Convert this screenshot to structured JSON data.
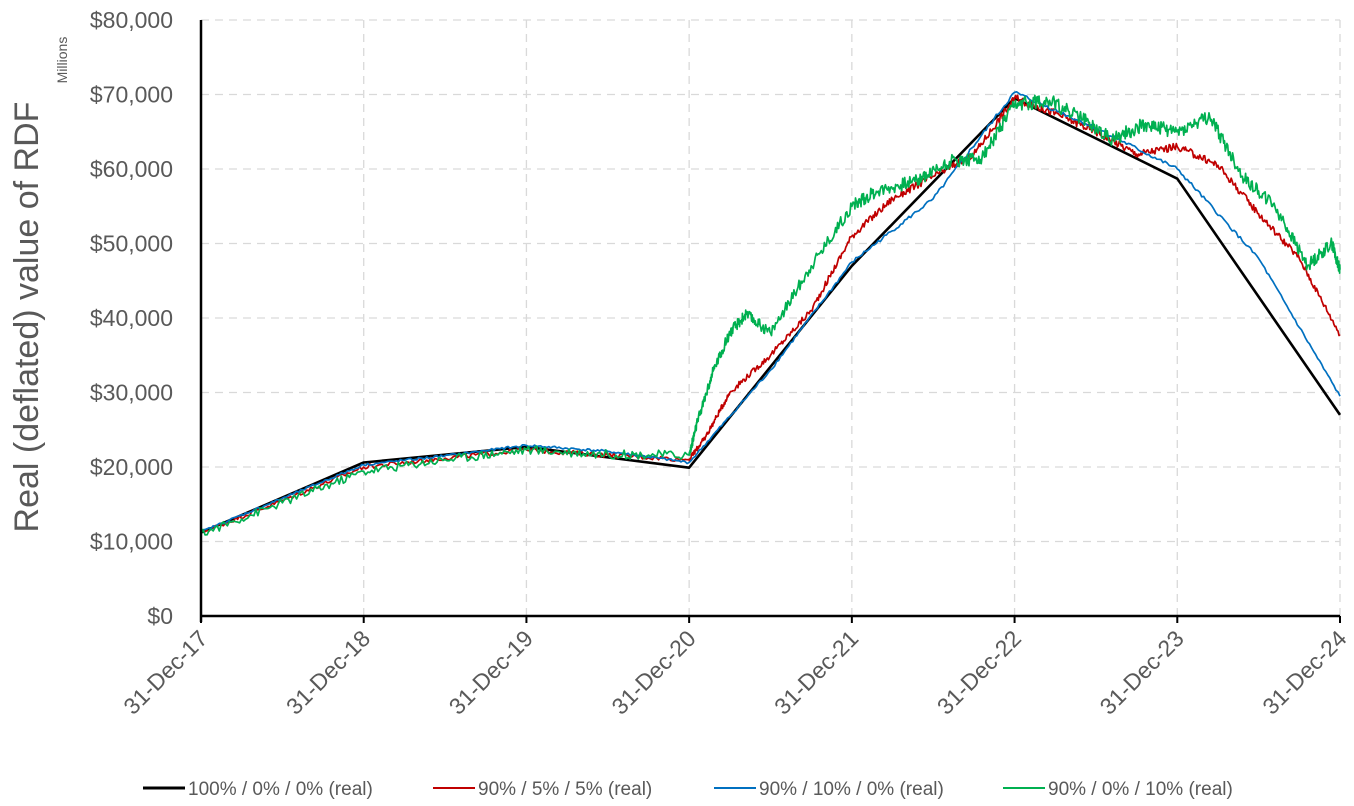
{
  "chart_data": {
    "type": "line",
    "title": "",
    "ylabel": "Real (deflated) value of RDF",
    "yunit": "Millions",
    "ylim": [
      0,
      80000
    ],
    "yticks": [
      0,
      10000,
      20000,
      30000,
      40000,
      50000,
      60000,
      70000,
      80000
    ],
    "ytick_labels": [
      "$0",
      "$10,000",
      "$20,000",
      "$30,000",
      "$40,000",
      "$50,000",
      "$60,000",
      "$70,000",
      "$80,000"
    ],
    "xlabel": "",
    "x_tick_labels": [
      "31-Dec-17",
      "31-Dec-18",
      "31-Dec-19",
      "31-Dec-20",
      "31-Dec-21",
      "31-Dec-22",
      "31-Dec-23",
      "31-Dec-24"
    ],
    "grid": true,
    "legend_position": "bottom",
    "series": [
      {
        "name": "100% / 0% / 0% (real)",
        "color": "#000000",
        "points": [
          [
            0,
            11200
          ],
          [
            1,
            20600
          ],
          [
            2,
            22700
          ],
          [
            3,
            19900
          ],
          [
            4,
            47000
          ],
          [
            5,
            69500
          ],
          [
            6,
            58700
          ],
          [
            7,
            27000
          ]
        ]
      },
      {
        "name": "90% / 5% / 5% (real)",
        "color": "#c00000",
        "points": [
          [
            0,
            11200
          ],
          [
            0.5,
            15500
          ],
          [
            1,
            20000
          ],
          [
            1.5,
            21200
          ],
          [
            2,
            22300
          ],
          [
            2.5,
            21600
          ],
          [
            3,
            21000
          ],
          [
            3.1,
            24000
          ],
          [
            3.25,
            30000
          ],
          [
            3.5,
            35000
          ],
          [
            3.75,
            41000
          ],
          [
            4,
            51000
          ],
          [
            4.25,
            56000
          ],
          [
            4.5,
            59000
          ],
          [
            4.75,
            62000
          ],
          [
            5,
            69500
          ],
          [
            5.25,
            67500
          ],
          [
            5.5,
            65000
          ],
          [
            5.75,
            62000
          ],
          [
            6,
            63000
          ],
          [
            6.25,
            60500
          ],
          [
            6.5,
            54000
          ],
          [
            6.75,
            48000
          ],
          [
            7,
            37800
          ]
        ]
      },
      {
        "name": "90% / 10% / 0% (real)",
        "color": "#0070c0",
        "points": [
          [
            0,
            11300
          ],
          [
            0.5,
            15800
          ],
          [
            1,
            20300
          ],
          [
            1.5,
            21500
          ],
          [
            2,
            22900
          ],
          [
            2.5,
            22100
          ],
          [
            3,
            20600
          ],
          [
            3.5,
            33000
          ],
          [
            4,
            47500
          ],
          [
            4.5,
            56000
          ],
          [
            5,
            70300
          ],
          [
            5.5,
            65500
          ],
          [
            6,
            60000
          ],
          [
            6.5,
            48000
          ],
          [
            7,
            29500
          ]
        ]
      },
      {
        "name": "90% / 0% / 10% (real)",
        "color": "#00b050",
        "points": [
          [
            0,
            11000
          ],
          [
            0.5,
            15200
          ],
          [
            1,
            19400
          ],
          [
            1.5,
            21000
          ],
          [
            2,
            22300
          ],
          [
            2.5,
            21700
          ],
          [
            3,
            21600
          ],
          [
            3.05,
            26000
          ],
          [
            3.15,
            33000
          ],
          [
            3.25,
            38000
          ],
          [
            3.35,
            40500
          ],
          [
            3.5,
            38000
          ],
          [
            3.75,
            47000
          ],
          [
            4,
            55000
          ],
          [
            4.15,
            57000
          ],
          [
            4.4,
            58500
          ],
          [
            4.6,
            61000
          ],
          [
            4.8,
            61500
          ],
          [
            5,
            68500
          ],
          [
            5.2,
            69300
          ],
          [
            5.4,
            67000
          ],
          [
            5.6,
            64000
          ],
          [
            5.8,
            66000
          ],
          [
            6,
            65000
          ],
          [
            6.2,
            67000
          ],
          [
            6.4,
            59000
          ],
          [
            6.6,
            55000
          ],
          [
            6.8,
            47000
          ],
          [
            6.95,
            50000
          ],
          [
            7,
            46500
          ]
        ]
      }
    ]
  }
}
